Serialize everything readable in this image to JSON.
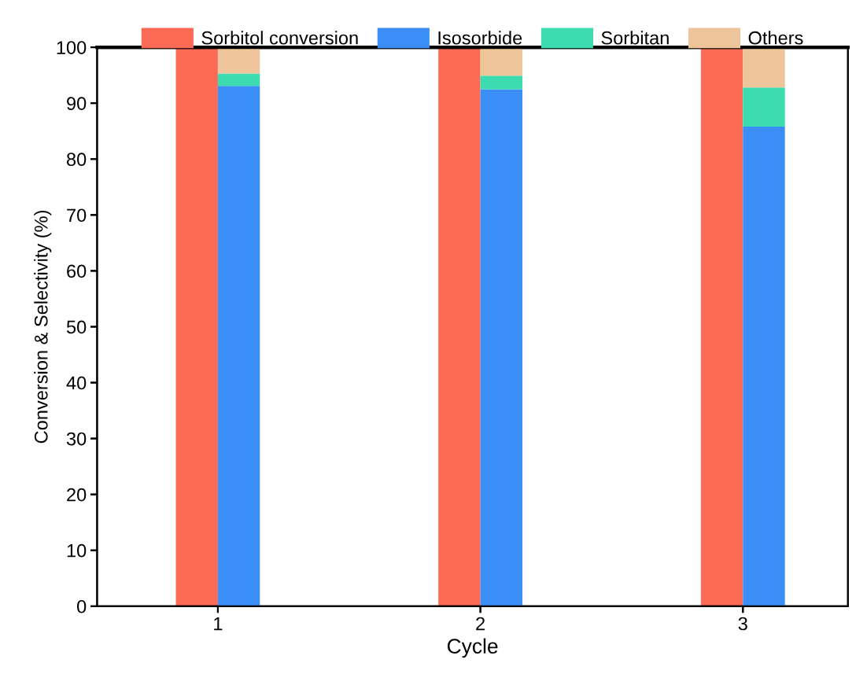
{
  "chart_data": [
    {
      "type": "bar",
      "xlabel": "Cycle",
      "ylabel": "Conversion & Selectivity (%)",
      "categories": [
        "1",
        "2",
        "3"
      ],
      "series": [
        {
          "name": "Sorbitol conversion",
          "color": "#fa6a55",
          "values": [
            100,
            100,
            100
          ]
        }
      ],
      "ylim": [
        0,
        100
      ],
      "yticks": [
        0,
        10,
        20,
        30,
        40,
        50,
        60,
        70,
        80,
        90,
        100
      ],
      "grid": false,
      "legend": "top"
    },
    {
      "type": "bar",
      "stacked": true,
      "categories": [
        "1",
        "2",
        "3"
      ],
      "series": [
        {
          "name": "Isosorbide",
          "color": "#3a8ef5",
          "values": [
            93.1,
            92.5,
            85.8
          ]
        },
        {
          "name": "Sorbitan",
          "color": "#3ddbb0",
          "values": [
            2.2,
            2.4,
            7.0
          ]
        },
        {
          "name": "Others",
          "color": "#eec49a",
          "values": [
            4.7,
            5.1,
            7.2
          ]
        }
      ],
      "ylim": [
        0,
        100
      ],
      "yticks": [
        0,
        10,
        20,
        30,
        40,
        50,
        60,
        70,
        80,
        90,
        100
      ],
      "tick_labels": false,
      "grid": false,
      "legend": "top"
    }
  ]
}
